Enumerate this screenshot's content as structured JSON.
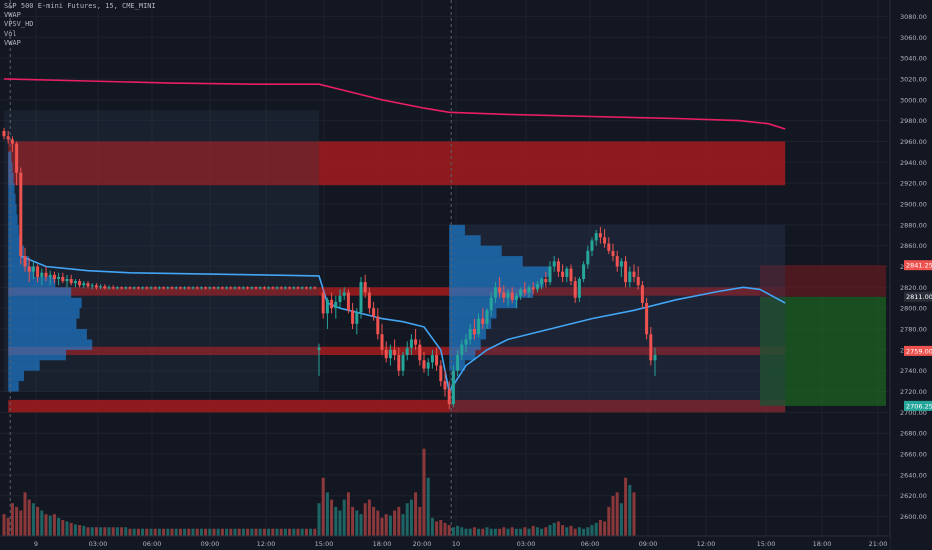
{
  "legend": {
    "title": "S&P 500 E-mini Futures, 15, CME_MINI",
    "lines": [
      "VWAP",
      "VPSV_HD",
      "Vol",
      "VWAP"
    ]
  },
  "colors": {
    "background": "#131722",
    "up_candle": "#26a69a",
    "down_candle": "#ef5350",
    "vwap_line": "#42a5f5",
    "upper_vwap_line": "#e91e63",
    "zone_fill": "#b71c1c",
    "volume_profile": "#1e88e5",
    "target_zone": "#1b5e20",
    "axis_text": "#b2b5be"
  },
  "chart_data": {
    "type": "candlestick",
    "ylim": [
      2590,
      3090
    ],
    "y_ticks": [
      "3080.00",
      "3060.00",
      "3040.00",
      "3020.00",
      "3000.00",
      "2980.00",
      "2960.00",
      "2940.00",
      "2920.00",
      "2900.00",
      "2880.00",
      "2860.00",
      "2840.00",
      "2820.00",
      "2800.00",
      "2780.00",
      "2760.00",
      "2740.00",
      "2720.00",
      "2700.00",
      "2680.00",
      "2660.00",
      "2640.00",
      "2620.00",
      "2600.00"
    ],
    "x_tick_labels": [
      "9",
      "03:00",
      "06:00",
      "09:00",
      "12:00",
      "15:00",
      "18:00",
      "20:00",
      "10",
      "03:00",
      "06:00",
      "09:00",
      "12:00",
      "15:00",
      "18:00",
      "21:00"
    ],
    "price_labels": [
      {
        "text": "2841.25",
        "value": 2841.25,
        "color": "#ef5350"
      },
      {
        "text": "2811.00",
        "value": 2811.0,
        "color": "#2a2e39"
      },
      {
        "text": "2759.00",
        "value": 2759.0,
        "color": "#ef5350"
      },
      {
        "text": "2706.25",
        "value": 2706.25,
        "color": "#26a69a"
      }
    ],
    "zones": [
      {
        "from": 2918,
        "to": 2960,
        "x0": 1,
        "x1": 186
      },
      {
        "from": 2812,
        "to": 2820,
        "x0": 1,
        "x1": 186
      },
      {
        "from": 2755,
        "to": 2763,
        "x0": 1,
        "x1": 186
      },
      {
        "from": 2700,
        "to": 2712,
        "x0": 1,
        "x1": 186
      }
    ],
    "target_zone": {
      "from": 2706.25,
      "to": 2811,
      "x0": 180,
      "x1": 210
    },
    "stop_zone": {
      "from": 2811,
      "to": 2841.25,
      "x0": 180,
      "x1": 210
    },
    "session_divider_bars": [
      1,
      106
    ],
    "candles": [
      [
        2970,
        2973,
        2962,
        2965
      ],
      [
        2965,
        2970,
        2958,
        2962
      ],
      [
        2962,
        2965,
        2950,
        2958
      ],
      [
        2958,
        2960,
        2918,
        2930
      ],
      [
        2930,
        2935,
        2842,
        2850
      ],
      [
        2850,
        2858,
        2835,
        2840
      ],
      [
        2840,
        2848,
        2825,
        2835
      ],
      [
        2835,
        2845,
        2828,
        2840
      ],
      [
        2840,
        2842,
        2825,
        2830
      ],
      [
        2830,
        2838,
        2822,
        2834
      ],
      [
        2834,
        2840,
        2826,
        2830
      ],
      [
        2830,
        2836,
        2822,
        2832
      ],
      [
        2832,
        2835,
        2824,
        2828
      ],
      [
        2828,
        2834,
        2822,
        2830
      ],
      [
        2830,
        2834,
        2824,
        2826
      ],
      [
        2826,
        2832,
        2820,
        2828
      ],
      [
        2828,
        2832,
        2822,
        2824
      ],
      [
        2824,
        2828,
        2820,
        2826
      ],
      [
        2826,
        2828,
        2820,
        2822
      ],
      [
        2822,
        2826,
        2819,
        2824
      ],
      [
        2824,
        2826,
        2819,
        2821
      ],
      [
        2821,
        2824,
        2818,
        2822
      ],
      [
        2822,
        2824,
        2818,
        2820
      ],
      [
        2820,
        2823,
        2818,
        2821
      ],
      [
        2821,
        2823,
        2818,
        2819
      ],
      [
        2819,
        2822,
        2818,
        2820
      ],
      [
        2820,
        2822,
        2818,
        2819
      ],
      [
        2819,
        2821,
        2818,
        2820
      ],
      [
        2820,
        2821,
        2818,
        2819
      ],
      [
        2819,
        2821,
        2818,
        2820
      ],
      [
        2820,
        2821,
        2818,
        2819
      ],
      [
        2819,
        2821,
        2818,
        2820
      ],
      [
        2820,
        2821,
        2818,
        2819
      ],
      [
        2819,
        2821,
        2818,
        2820
      ],
      [
        2820,
        2821,
        2818,
        2819
      ],
      [
        2819,
        2821,
        2818,
        2820
      ],
      [
        2820,
        2821,
        2818,
        2819
      ],
      [
        2819,
        2821,
        2818,
        2820
      ],
      [
        2820,
        2821,
        2818,
        2819
      ],
      [
        2819,
        2821,
        2818,
        2820
      ],
      [
        2820,
        2821,
        2818,
        2819
      ],
      [
        2819,
        2821,
        2818,
        2820
      ],
      [
        2820,
        2821,
        2818,
        2819
      ],
      [
        2819,
        2821,
        2818,
        2820
      ],
      [
        2820,
        2821,
        2818,
        2819
      ],
      [
        2819,
        2821,
        2818,
        2820
      ],
      [
        2820,
        2821,
        2818,
        2819
      ],
      [
        2819,
        2821,
        2818,
        2820
      ],
      [
        2820,
        2821,
        2818,
        2819
      ],
      [
        2819,
        2821,
        2818,
        2820
      ],
      [
        2820,
        2821,
        2818,
        2819
      ],
      [
        2819,
        2821,
        2818,
        2820
      ],
      [
        2820,
        2821,
        2818,
        2819
      ],
      [
        2819,
        2821,
        2818,
        2820
      ],
      [
        2820,
        2821,
        2818,
        2819
      ],
      [
        2819,
        2821,
        2818,
        2820
      ],
      [
        2820,
        2821,
        2818,
        2819
      ],
      [
        2819,
        2821,
        2818,
        2820
      ],
      [
        2820,
        2821,
        2818,
        2819
      ],
      [
        2819,
        2821,
        2818,
        2820
      ],
      [
        2820,
        2821,
        2818,
        2819
      ],
      [
        2819,
        2821,
        2818,
        2820
      ],
      [
        2820,
        2821,
        2818,
        2819
      ],
      [
        2819,
        2821,
        2818,
        2820
      ],
      [
        2820,
        2821,
        2818,
        2819
      ],
      [
        2819,
        2821,
        2818,
        2820
      ],
      [
        2820,
        2821,
        2818,
        2819
      ],
      [
        2819,
        2821,
        2818,
        2820
      ],
      [
        2820,
        2821,
        2818,
        2819
      ],
      [
        2819,
        2821,
        2818,
        2820
      ],
      [
        2820,
        2821,
        2818,
        2819
      ],
      [
        2819,
        2821,
        2818,
        2820
      ],
      [
        2820,
        2821,
        2818,
        2819
      ],
      [
        2819,
        2821,
        2818,
        2820
      ],
      [
        2820,
        2821,
        2818,
        2819
      ],
      [
        2760,
        2766,
        2735,
        2762
      ],
      [
        2815,
        2820,
        2790,
        2795
      ],
      [
        2795,
        2810,
        2780,
        2808
      ],
      [
        2808,
        2815,
        2795,
        2800
      ],
      [
        2800,
        2812,
        2790,
        2806
      ],
      [
        2806,
        2818,
        2800,
        2812
      ],
      [
        2812,
        2820,
        2808,
        2815
      ],
      [
        2815,
        2818,
        2795,
        2798
      ],
      [
        2798,
        2805,
        2780,
        2785
      ],
      [
        2785,
        2800,
        2775,
        2796
      ],
      [
        2796,
        2830,
        2790,
        2825
      ],
      [
        2825,
        2832,
        2810,
        2815
      ],
      [
        2815,
        2820,
        2795,
        2800
      ],
      [
        2800,
        2806,
        2788,
        2792
      ],
      [
        2792,
        2800,
        2770,
        2775
      ],
      [
        2775,
        2785,
        2755,
        2760
      ],
      [
        2760,
        2768,
        2748,
        2752
      ],
      [
        2752,
        2765,
        2745,
        2760
      ],
      [
        2760,
        2770,
        2750,
        2755
      ],
      [
        2755,
        2762,
        2735,
        2740
      ],
      [
        2740,
        2758,
        2735,
        2755
      ],
      [
        2755,
        2768,
        2750,
        2762
      ],
      [
        2762,
        2775,
        2755,
        2770
      ],
      [
        2770,
        2780,
        2760,
        2765
      ],
      [
        2765,
        2770,
        2745,
        2750
      ],
      [
        2750,
        2758,
        2738,
        2742
      ],
      [
        2742,
        2752,
        2735,
        2748
      ],
      [
        2748,
        2760,
        2742,
        2755
      ],
      [
        2755,
        2762,
        2740,
        2745
      ],
      [
        2745,
        2750,
        2725,
        2730
      ],
      [
        2730,
        2740,
        2715,
        2722
      ],
      [
        2722,
        2730,
        2703,
        2708
      ],
      [
        2708,
        2745,
        2705,
        2740
      ],
      [
        2740,
        2760,
        2735,
        2755
      ],
      [
        2755,
        2770,
        2750,
        2765
      ],
      [
        2765,
        2775,
        2758,
        2770
      ],
      [
        2770,
        2785,
        2765,
        2780
      ],
      [
        2780,
        2790,
        2770,
        2775
      ],
      [
        2775,
        2795,
        2772,
        2790
      ],
      [
        2790,
        2800,
        2780,
        2785
      ],
      [
        2785,
        2800,
        2780,
        2798
      ],
      [
        2798,
        2815,
        2792,
        2810
      ],
      [
        2810,
        2825,
        2805,
        2820
      ],
      [
        2820,
        2830,
        2810,
        2815
      ],
      [
        2815,
        2822,
        2805,
        2810
      ],
      [
        2810,
        2818,
        2802,
        2815
      ],
      [
        2815,
        2820,
        2805,
        2808
      ],
      [
        2808,
        2815,
        2800,
        2812
      ],
      [
        2812,
        2820,
        2808,
        2818
      ],
      [
        2818,
        2825,
        2812,
        2815
      ],
      [
        2815,
        2822,
        2810,
        2820
      ],
      [
        2820,
        2825,
        2814,
        2818
      ],
      [
        2818,
        2826,
        2815,
        2823
      ],
      [
        2823,
        2830,
        2818,
        2828
      ],
      [
        2828,
        2835,
        2820,
        2825
      ],
      [
        2825,
        2845,
        2822,
        2840
      ],
      [
        2840,
        2850,
        2835,
        2845
      ],
      [
        2845,
        2848,
        2830,
        2835
      ],
      [
        2835,
        2842,
        2825,
        2830
      ],
      [
        2830,
        2840,
        2825,
        2838
      ],
      [
        2838,
        2842,
        2822,
        2826
      ],
      [
        2826,
        2830,
        2805,
        2810
      ],
      [
        2810,
        2830,
        2806,
        2828
      ],
      [
        2828,
        2845,
        2825,
        2842
      ],
      [
        2842,
        2860,
        2838,
        2855
      ],
      [
        2855,
        2868,
        2850,
        2865
      ],
      [
        2865,
        2875,
        2860,
        2872
      ],
      [
        2872,
        2878,
        2862,
        2868
      ],
      [
        2868,
        2876,
        2858,
        2862
      ],
      [
        2862,
        2868,
        2852,
        2855
      ],
      [
        2855,
        2862,
        2845,
        2850
      ],
      [
        2850,
        2855,
        2835,
        2840
      ],
      [
        2840,
        2848,
        2830,
        2845
      ],
      [
        2845,
        2850,
        2820,
        2825
      ],
      [
        2825,
        2840,
        2820,
        2835
      ],
      [
        2835,
        2842,
        2825,
        2830
      ],
      [
        2830,
        2840,
        2818,
        2822
      ],
      [
        2822,
        2826,
        2800,
        2805
      ],
      [
        2805,
        2810,
        2770,
        2775
      ],
      [
        2775,
        2782,
        2745,
        2750
      ],
      [
        2750,
        2762,
        2735,
        2755
      ]
    ],
    "vwap_path": [
      [
        4,
        2850
      ],
      [
        10,
        2840
      ],
      [
        20,
        2836
      ],
      [
        30,
        2834
      ],
      [
        45,
        2833
      ],
      [
        60,
        2832
      ],
      [
        75,
        2831
      ],
      [
        77,
        2805
      ],
      [
        80,
        2800
      ],
      [
        85,
        2795
      ],
      [
        90,
        2790
      ],
      [
        95,
        2787
      ],
      [
        100,
        2782
      ],
      [
        104,
        2760
      ],
      [
        106,
        2720
      ],
      [
        110,
        2745
      ],
      [
        115,
        2760
      ],
      [
        120,
        2770
      ],
      [
        130,
        2780
      ],
      [
        140,
        2790
      ],
      [
        150,
        2798
      ],
      [
        160,
        2808
      ],
      [
        170,
        2816
      ],
      [
        176,
        2820
      ],
      [
        180,
        2818
      ],
      [
        186,
        2805
      ]
    ],
    "upper_vwap_path": [
      [
        0,
        3020
      ],
      [
        20,
        3018
      ],
      [
        40,
        3016
      ],
      [
        60,
        3015
      ],
      [
        75,
        3015
      ],
      [
        80,
        3010
      ],
      [
        90,
        3000
      ],
      [
        100,
        2992
      ],
      [
        106,
        2988
      ],
      [
        120,
        2986
      ],
      [
        140,
        2984
      ],
      [
        160,
        2982
      ],
      [
        175,
        2980
      ],
      [
        182,
        2977
      ],
      [
        186,
        2972
      ]
    ],
    "volume_profile_day1": [
      [
        2945,
        3
      ],
      [
        2935,
        4
      ],
      [
        2925,
        5
      ],
      [
        2915,
        6
      ],
      [
        2905,
        7
      ],
      [
        2895,
        8
      ],
      [
        2885,
        9
      ],
      [
        2875,
        10
      ],
      [
        2865,
        12
      ],
      [
        2855,
        15
      ],
      [
        2845,
        20
      ],
      [
        2835,
        25
      ],
      [
        2825,
        45
      ],
      [
        2815,
        60
      ],
      [
        2805,
        70
      ],
      [
        2795,
        68
      ],
      [
        2785,
        65
      ],
      [
        2775,
        75
      ],
      [
        2765,
        80
      ],
      [
        2755,
        55
      ],
      [
        2745,
        30
      ],
      [
        2735,
        15
      ],
      [
        2725,
        10
      ]
    ],
    "volume_profile_day2": [
      [
        2875,
        15
      ],
      [
        2865,
        30
      ],
      [
        2855,
        50
      ],
      [
        2845,
        70
      ],
      [
        2835,
        95
      ],
      [
        2825,
        90
      ],
      [
        2815,
        80
      ],
      [
        2805,
        65
      ],
      [
        2795,
        45
      ],
      [
        2785,
        40
      ],
      [
        2775,
        35
      ],
      [
        2765,
        30
      ],
      [
        2755,
        25
      ],
      [
        2745,
        15
      ]
    ],
    "volume": [
      30,
      25,
      45,
      40,
      35,
      60,
      50,
      45,
      40,
      35,
      30,
      28,
      30,
      25,
      22,
      20,
      18,
      16,
      15,
      14,
      12,
      12,
      12,
      12,
      12,
      12,
      12,
      12,
      12,
      12,
      10,
      10,
      10,
      10,
      10,
      10,
      10,
      10,
      10,
      10,
      10,
      10,
      10,
      10,
      10,
      10,
      10,
      10,
      10,
      10,
      10,
      10,
      10,
      10,
      10,
      10,
      10,
      10,
      10,
      10,
      10,
      10,
      10,
      10,
      10,
      10,
      10,
      10,
      10,
      10,
      10,
      10,
      10,
      10,
      10,
      45,
      80,
      60,
      50,
      40,
      35,
      50,
      60,
      40,
      35,
      30,
      45,
      50,
      40,
      35,
      25,
      30,
      28,
      35,
      40,
      30,
      45,
      50,
      60,
      40,
      120,
      80,
      25,
      20,
      22,
      18,
      15,
      12,
      14,
      12,
      10,
      10,
      12,
      10,
      10,
      12,
      10,
      10,
      10,
      12,
      10,
      12,
      10,
      10,
      12,
      10,
      14,
      12,
      10,
      12,
      15,
      18,
      20,
      15,
      12,
      14,
      10,
      12,
      10,
      12,
      15,
      18,
      22,
      20,
      40,
      55,
      60,
      45,
      80,
      70,
      60
    ],
    "volume_ylim": [
      0,
      125
    ]
  }
}
